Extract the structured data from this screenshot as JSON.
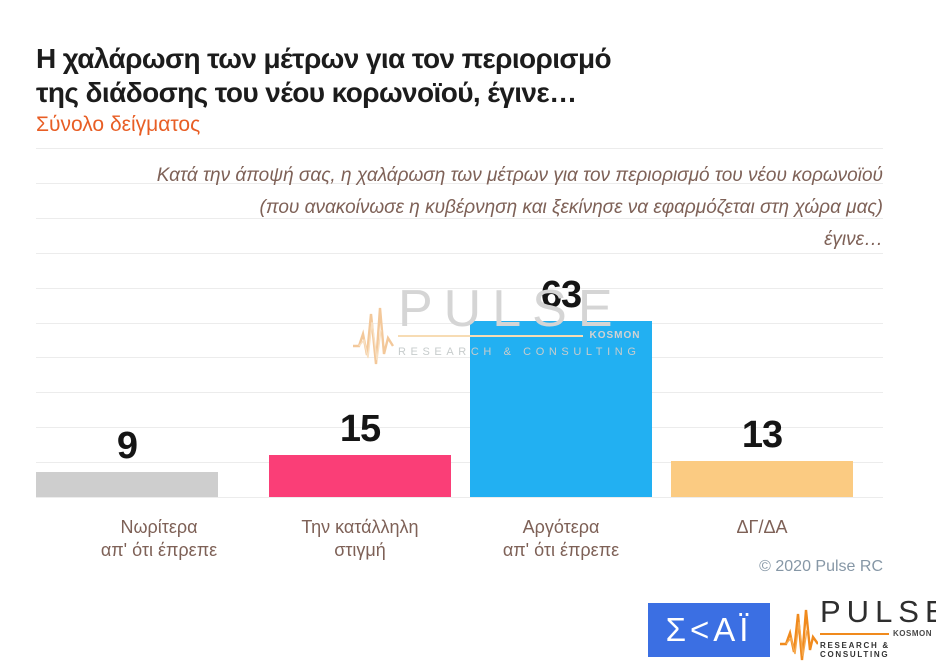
{
  "header": {
    "title_line1": "Η χαλάρωση των μέτρων για τον περιορισμό",
    "title_line2": "της διάδοσης του νέου κορωνοϊού, έγινε…",
    "subtitle": "Σύνολο δείγματος"
  },
  "question": {
    "line1": "Κατά την άποψή σας, η χαλάρωση των μέτρων για τον περιορισμό του νέου κορωνοϊού",
    "line2": "(που ανακοίνωσε η κυβέρνηση και ξεκίνησε να εφαρμόζεται στη χώρα μας)",
    "line3": "έγινε…"
  },
  "chart_data": {
    "type": "bar",
    "title": "Η χαλάρωση των μέτρων για τον περιορισμό της διάδοσης του νέου κορωνοϊού, έγινε…",
    "subtitle": "Σύνολο δείγματος",
    "categories": [
      "Νωρίτερα\nαπ' ότι έπρεπε",
      "Την κατάλληλη\nστιγμή",
      "Αργότερα\nαπ' ότι έπρεπε",
      "ΔΓ/ΔΑ"
    ],
    "values": [
      15,
      63,
      13,
      9
    ],
    "colors": [
      "#FA3E77",
      "#22B0F2",
      "#FBCB82",
      "#CECECE"
    ],
    "xlabel": "",
    "ylabel": "",
    "ylim": [
      0,
      125
    ],
    "grid": true,
    "gridline_count": 11,
    "legend": false,
    "value_labels": "above bars"
  },
  "watermark": {
    "icon": "heartbeat-waveform-icon",
    "brand": "PULSE",
    "sub_brand": "KOSMON",
    "tagline": "RESEARCH & CONSULTING"
  },
  "footer": {
    "copyright": "© 2020 Pulse RC",
    "skai_logo_text": "Σ<ΑΪ",
    "pulse_logo": {
      "icon": "heartbeat-waveform-icon",
      "brand": "PULSE",
      "sub_brand": "KOSMON",
      "tagline": "RESEARCH & CONSULTING"
    }
  },
  "colors": {
    "accent_orange": "#E85E25",
    "text_brown": "#7E6157",
    "gridline": "#ECECEC",
    "skai_blue": "#3B6FE3",
    "pulse_orange": "#F08A1D",
    "copyright_gray": "#8697A6"
  }
}
